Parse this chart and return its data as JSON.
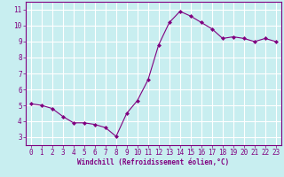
{
  "x": [
    0,
    1,
    2,
    3,
    4,
    5,
    6,
    7,
    8,
    9,
    10,
    11,
    12,
    13,
    14,
    15,
    16,
    17,
    18,
    19,
    20,
    21,
    22,
    23
  ],
  "y": [
    5.1,
    5.0,
    4.8,
    4.3,
    3.9,
    3.9,
    3.8,
    3.6,
    3.05,
    4.5,
    5.3,
    6.6,
    8.8,
    10.2,
    10.9,
    10.6,
    10.2,
    9.8,
    9.2,
    9.3,
    9.2,
    9.0,
    9.2,
    9.0
  ],
  "line_color": "#800080",
  "marker": "D",
  "marker_size": 2.0,
  "bg_color": "#c8eef0",
  "grid_color": "#ffffff",
  "xlabel": "Windchill (Refroidissement éolien,°C)",
  "xlabel_color": "#800080",
  "tick_color": "#800080",
  "spine_color": "#800080",
  "ylim": [
    2.5,
    11.5
  ],
  "xlim": [
    -0.5,
    23.5
  ],
  "yticks": [
    3,
    4,
    5,
    6,
    7,
    8,
    9,
    10,
    11
  ],
  "xticks": [
    0,
    1,
    2,
    3,
    4,
    5,
    6,
    7,
    8,
    9,
    10,
    11,
    12,
    13,
    14,
    15,
    16,
    17,
    18,
    19,
    20,
    21,
    22,
    23
  ],
  "xlabel_fontsize": 5.5,
  "tick_fontsize": 5.5
}
